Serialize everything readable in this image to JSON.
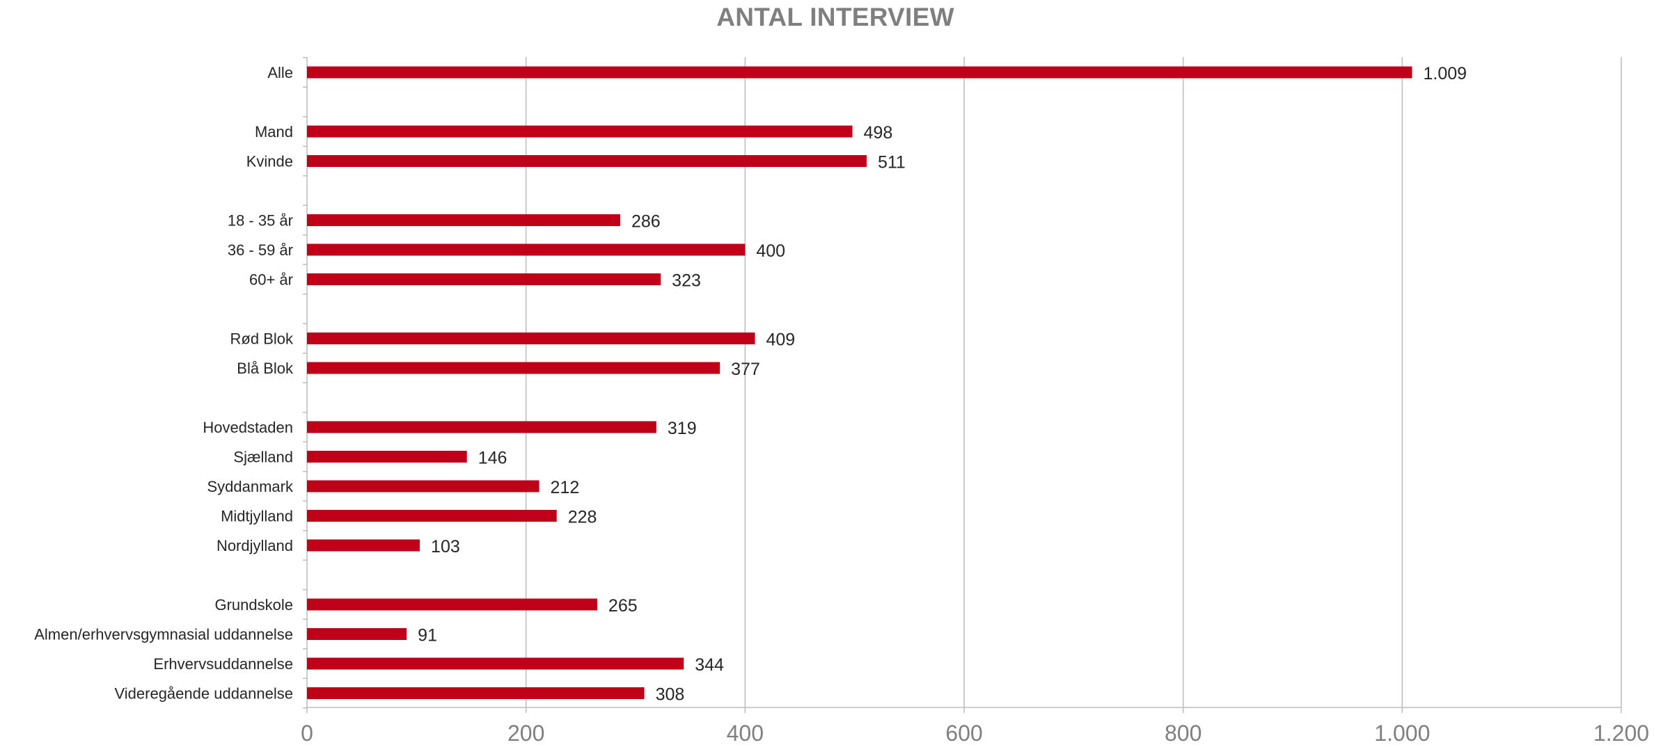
{
  "chart_data": {
    "type": "bar",
    "orientation": "horizontal",
    "title": "ANTAL INTERVIEW",
    "xlabel": "",
    "ylabel": "",
    "xlim": [
      0,
      1200
    ],
    "ticks": [
      0,
      200,
      400,
      600,
      800,
      1000,
      1200
    ],
    "tick_labels": [
      "0",
      "200",
      "400",
      "600",
      "800",
      "1.000",
      "1.200"
    ],
    "grid": "vertical",
    "bar_color": "#c00018",
    "categories": [
      "Alle",
      "",
      "Mand",
      "Kvinde",
      "",
      "18 - 35 år",
      "36 - 59 år",
      "60+ år",
      "",
      "Rød Blok",
      "Blå Blok",
      "",
      "Hovedstaden",
      "Sjælland",
      "Syddanmark",
      "Midtjylland",
      "Nordjylland",
      "",
      "Grundskole",
      "Almen/erhvervsgymnasial uddannelse",
      "Erhvervsuddannelse",
      "Videregående uddannelse"
    ],
    "values": [
      1009,
      null,
      498,
      511,
      null,
      286,
      400,
      323,
      null,
      409,
      377,
      null,
      319,
      146,
      212,
      228,
      103,
      null,
      265,
      91,
      344,
      308
    ],
    "value_labels": [
      "1.009",
      "",
      "498",
      "511",
      "",
      "286",
      "400",
      "323",
      "",
      "409",
      "377",
      "",
      "319",
      "146",
      "212",
      "228",
      "103",
      "",
      "265",
      "91",
      "344",
      "308"
    ]
  }
}
